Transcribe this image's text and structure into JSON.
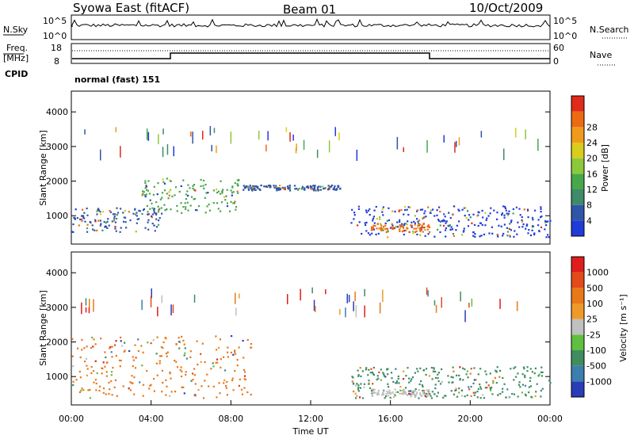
{
  "header": {
    "station": "Syowa East (fitACF)",
    "beam": "Beam 01",
    "date": "10/Oct/2009"
  },
  "aux": {
    "nsky_label": "N.Sky",
    "nsky_ticks": [
      "10^5",
      "10^0"
    ],
    "nsearch_label": "N.Search",
    "nsearch_ticks": [
      "10^5",
      "10^0"
    ],
    "freq_label_1": "Freq.",
    "freq_label_2": "[MHz]",
    "freq_ticks": [
      "18",
      "8"
    ],
    "nave_label": "Nave",
    "nave_ticks": [
      "60",
      "0"
    ],
    "cpid_label": "CPID",
    "cpid_value": "normal (fast) 151"
  },
  "chart_data": [
    {
      "type": "heatmap",
      "name": "power",
      "ylabel": "Slant Range [km]",
      "ylim": [
        180,
        4600
      ],
      "yticks": [
        "1000",
        "2000",
        "3000",
        "4000"
      ],
      "colorbar_label": "Power [dB]",
      "colorbar_ticks": [
        "4",
        "8",
        "12",
        "16",
        "20",
        "24",
        "28"
      ],
      "colorbar_colors": [
        "#1f3bd8",
        "#2f55a8",
        "#3e8a6a",
        "#47a84a",
        "#8cc83c",
        "#d8cc1c",
        "#f09a1c",
        "#ec6a14",
        "#e02a1a"
      ],
      "scatter_bands": [
        {
          "x_range_h": [
            0.0,
            4.5
          ],
          "range_km": [
            550,
            1250
          ],
          "color": "#2f55a8"
        },
        {
          "x_range_h": [
            3.5,
            8.5
          ],
          "range_km": [
            1100,
            2100
          ],
          "color": "#47a84a"
        },
        {
          "x_range_h": [
            8.5,
            13.5
          ],
          "range_km": [
            1750,
            1900
          ],
          "color": "#2f55a8"
        },
        {
          "x_range_h": [
            14.0,
            24.0
          ],
          "range_km": [
            400,
            1300
          ],
          "color": "#1f3bd8"
        },
        {
          "x_range_h": [
            15.0,
            18.0
          ],
          "range_km": [
            550,
            800
          ],
          "color": "#ec6a14"
        }
      ]
    },
    {
      "type": "heatmap",
      "name": "velocity",
      "ylabel": "Slant Range [km]",
      "xlabel": "Time UT",
      "ylim": [
        180,
        4600
      ],
      "yticks": [
        "1000",
        "2000",
        "3000",
        "4000"
      ],
      "xticks": [
        "00:00",
        "04:00",
        "08:00",
        "12:00",
        "16:00",
        "20:00",
        "00:00"
      ],
      "colorbar_label": "Velocity [m s⁻¹]",
      "colorbar_ticks": [
        "1000",
        "500",
        "100",
        "25",
        "-25",
        "-100",
        "-500",
        "-1000"
      ],
      "colorbar_colors": [
        "#2a3cb8",
        "#3a7fae",
        "#3f8c60",
        "#5fbf40",
        "#c0c0c0",
        "#ef9a28",
        "#e9781a",
        "#e44a1a",
        "#e01c1c"
      ],
      "scatter_bands": [
        {
          "x_range_h": [
            0.0,
            9.0
          ],
          "range_km": [
            400,
            2200
          ],
          "color": "#e9781a"
        },
        {
          "x_range_h": [
            14.0,
            24.0
          ],
          "range_km": [
            400,
            1300
          ],
          "color": "#3f8c60"
        },
        {
          "x_range_h": [
            15.0,
            18.0
          ],
          "range_km": [
            450,
            650
          ],
          "color": "#c0c0c0"
        }
      ]
    }
  ]
}
